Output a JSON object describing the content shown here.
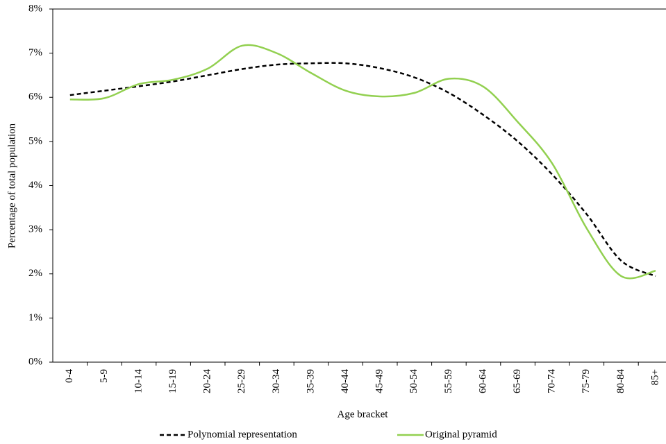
{
  "chart_data": {
    "type": "line",
    "x_label": "Age bracket",
    "y_label": "Percentage of total population",
    "categories": [
      "0-4",
      "5-9",
      "10-14",
      "15-19",
      "20-24",
      "25-29",
      "30-34",
      "35-39",
      "40-44",
      "45-49",
      "50-54",
      "55-59",
      "60-64",
      "65-69",
      "70-74",
      "75-79",
      "80-84",
      "85+"
    ],
    "series": [
      {
        "name": "Polynomial representation",
        "color": "#000000",
        "dash": true,
        "values": [
          6.05,
          6.15,
          6.25,
          6.36,
          6.5,
          6.64,
          6.74,
          6.77,
          6.77,
          6.66,
          6.45,
          6.1,
          5.6,
          5.0,
          4.25,
          3.35,
          2.3,
          1.95
        ]
      },
      {
        "name": "Original pyramid",
        "color": "#92d050",
        "dash": false,
        "values": [
          5.95,
          5.98,
          6.3,
          6.4,
          6.65,
          7.17,
          7.0,
          6.55,
          6.15,
          6.02,
          6.1,
          6.42,
          6.24,
          5.44,
          4.5,
          3.03,
          1.95,
          2.07
        ]
      }
    ],
    "ylim": [
      0,
      8
    ],
    "yticks": [
      {
        "value": 0,
        "label": "0%"
      },
      {
        "value": 1,
        "label": "1%"
      },
      {
        "value": 2,
        "label": "2%"
      },
      {
        "value": 3,
        "label": "3%"
      },
      {
        "value": 4,
        "label": "4%"
      },
      {
        "value": 5,
        "label": "5%"
      },
      {
        "value": 6,
        "label": "6%"
      },
      {
        "value": 7,
        "label": "7%"
      },
      {
        "value": 8,
        "label": "8%"
      }
    ],
    "legend": "bottom"
  }
}
